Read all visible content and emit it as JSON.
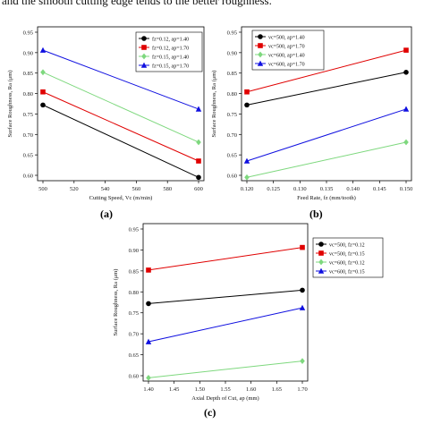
{
  "header_text": "and the smooth cutting edge tends to the better roughness.",
  "colors": {
    "black": "#000000",
    "red": "#e00000",
    "green": "#7ed87e",
    "blue": "#1010e0"
  },
  "panel_labels": [
    "(a)",
    "(b)",
    "(c)"
  ],
  "chart_data": [
    {
      "type": "line",
      "xlabel": "Cutting Speed, Vc (m/min)",
      "ylabel": "Surface Roughness, Ra (μm)",
      "xlim": [
        500,
        600
      ],
      "ylim": [
        0.6,
        0.95
      ],
      "xticks": [
        "500",
        "520",
        "540",
        "560",
        "580",
        "600"
      ],
      "yticks": [
        "0.60",
        "0.65",
        "0.70",
        "0.75",
        "0.80",
        "0.85",
        "0.90",
        "0.95"
      ],
      "legend_position": "top-right",
      "x": [
        500,
        600
      ],
      "series": [
        {
          "name": "fz=0.12, ap=1.40",
          "values": [
            0.772,
            0.595
          ],
          "color": "#000000",
          "marker": "circle"
        },
        {
          "name": "fz=0.12, ap=1.70",
          "values": [
            0.804,
            0.635
          ],
          "color": "#e00000",
          "marker": "square"
        },
        {
          "name": "fz=0.15, ap=1.40",
          "values": [
            0.852,
            0.681
          ],
          "color": "#7ed87e",
          "marker": "diamond"
        },
        {
          "name": "fz=0.15, ap=1.70",
          "values": [
            0.906,
            0.762
          ],
          "color": "#1010e0",
          "marker": "triangle"
        }
      ]
    },
    {
      "type": "line",
      "xlabel": "Feed Rate, fz (mm/tooth)",
      "ylabel": "Surface Roughness, Ra (μm)",
      "xlim": [
        0.12,
        0.15
      ],
      "ylim": [
        0.6,
        0.95
      ],
      "xticks": [
        "0.120",
        "0.125",
        "0.130",
        "0.135",
        "0.140",
        "0.145",
        "0.150"
      ],
      "yticks": [
        "0.60",
        "0.65",
        "0.70",
        "0.75",
        "0.80",
        "0.85",
        "0.90",
        "0.95"
      ],
      "legend_position": "top-left",
      "x": [
        0.12,
        0.15
      ],
      "series": [
        {
          "name": "vc=500, ap=1.40",
          "values": [
            0.772,
            0.852
          ],
          "color": "#000000",
          "marker": "circle"
        },
        {
          "name": "vc=500, ap=1.70",
          "values": [
            0.804,
            0.906
          ],
          "color": "#e00000",
          "marker": "square"
        },
        {
          "name": "vc=600, ap=1.40",
          "values": [
            0.595,
            0.681
          ],
          "color": "#7ed87e",
          "marker": "diamond"
        },
        {
          "name": "vc=600, ap=1.70",
          "values": [
            0.635,
            0.762
          ],
          "color": "#1010e0",
          "marker": "triangle"
        }
      ]
    },
    {
      "type": "line",
      "xlabel": "Axial Depth of Cut, ap (mm)",
      "ylabel": "Surface Roughness, Ra (μm)",
      "xlim": [
        1.4,
        1.7
      ],
      "ylim": [
        0.6,
        0.95
      ],
      "xticks": [
        "1.40",
        "1.45",
        "1.50",
        "1.55",
        "1.60",
        "1.65",
        "1.70"
      ],
      "yticks": [
        "0.60",
        "0.65",
        "0.70",
        "0.75",
        "0.80",
        "0.85",
        "0.90",
        "0.95"
      ],
      "legend_position": "right",
      "x": [
        1.4,
        1.7
      ],
      "series": [
        {
          "name": "vc=500, fz=0.12",
          "values": [
            0.772,
            0.804
          ],
          "color": "#000000",
          "marker": "circle"
        },
        {
          "name": "vc=500, fz=0.15",
          "values": [
            0.852,
            0.906
          ],
          "color": "#e00000",
          "marker": "square"
        },
        {
          "name": "vc=600, fz=0.12",
          "values": [
            0.595,
            0.635
          ],
          "color": "#7ed87e",
          "marker": "diamond"
        },
        {
          "name": "vc=600, fz=0.15",
          "values": [
            0.681,
            0.762
          ],
          "color": "#1010e0",
          "marker": "triangle"
        }
      ]
    }
  ]
}
